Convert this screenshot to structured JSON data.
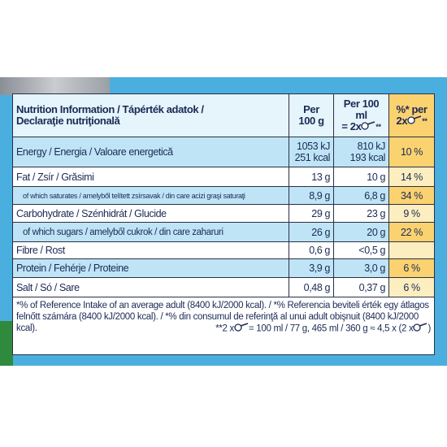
{
  "header": {
    "title": [
      "Nutrition Information / Tápérték adatok /",
      "Declaraţie nutriţională"
    ],
    "per_100g": [
      "Per",
      "100 g"
    ],
    "per_100ml": [
      "Per 100 ml",
      "= 2x",
      "**"
    ],
    "percent": [
      "%* per",
      "2x",
      "**"
    ]
  },
  "table": {
    "rows": [
      [
        [
          "Energy / Energia / Valoare energetică"
        ],
        [
          "1053 kJ",
          "251 kcal"
        ],
        [
          "810 kJ",
          "193 kcal"
        ],
        [
          "10 %"
        ]
      ],
      [
        [
          "Fat / Zsír / Grăsimi"
        ],
        [
          "13 g"
        ],
        [
          "10 g"
        ],
        [
          "14 %"
        ]
      ],
      [
        [
          "of which saturates / amelyből telített zsírsavak / din care acizi graşi saturaţi"
        ],
        [
          "8,9 g"
        ],
        [
          "6,8 g"
        ],
        [
          "34 %"
        ]
      ],
      [
        [
          "Carbohydrate / Szénhidrát / Glucide"
        ],
        [
          "29 g"
        ],
        [
          "23 g"
        ],
        [
          "9 %"
        ]
      ],
      [
        [
          "of which sugars / amelyből cukrok / din care zaharuri"
        ],
        [
          "26 g"
        ],
        [
          "20 g"
        ],
        [
          "22 %"
        ]
      ],
      [
        [
          "Fibre / Rost"
        ],
        [
          "0,6 g"
        ],
        [
          "<0,5 g"
        ],
        []
      ],
      [
        [
          "Protein / Fehérje / Proteine"
        ],
        [
          "3,9 g"
        ],
        [
          "3,0 g"
        ],
        [
          "6 %"
        ]
      ],
      [
        [
          "Salt / Só / Sare"
        ],
        [
          "0,48 g"
        ],
        [
          "0,37 g"
        ],
        [
          "6 %"
        ]
      ]
    ]
  },
  "footnote": {
    "text": "*% of Reference Intake of an average adult (8400 kJ/2000 kcal). / *% Referencia beviteli érték egy átlagos felnőtt számára (8400 kJ/2000 kcal). / *% din consumul de referinţă al unui adult obişnuit (8400 kJ/2000 kcal).",
    "serving": [
      "**2 x",
      "= 100 ml / 77 g, 465 ml / 360 g ≈ 4,5 x (2 x",
      ")"
    ]
  }
}
